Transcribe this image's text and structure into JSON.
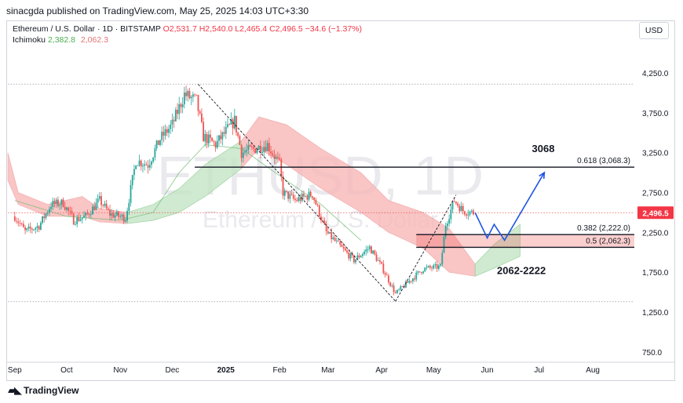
{
  "header": {
    "publisher": "sinacgda published on TradingView.com, May 25, 2025 14:03 UTC+3:30",
    "symbol": "Ethereum / U.S. Dollar · 1D · BITSTAMP",
    "ohlc": {
      "o": "O2,531.7",
      "h": "H2,540.0",
      "l": "L2,465.4",
      "c": "C2,496.5",
      "change": "−34.6 (−1.37%)"
    },
    "indicator": {
      "name": "Ichimoku",
      "v1": "2,382.8",
      "v2": "2,062.3"
    },
    "currency": "USD"
  },
  "watermark": {
    "ticker": "ETHUSD, 1D",
    "name": "Ethereum / U.S. Dollar"
  },
  "footer": {
    "brand": "TradingView"
  },
  "colors": {
    "up": "#26a69a",
    "down": "#ef5350",
    "cloud_bear": "#f8bcbc",
    "cloud_bull": "#c8e6c9",
    "projection": "#1e53e5",
    "zone": "#ef5350"
  },
  "chart_data": {
    "type": "candlestick",
    "y_scale": "linear",
    "ylim": [
      600,
      4500
    ],
    "yticks": [
      750,
      1250,
      1750,
      2250,
      2750,
      3250,
      3750,
      4250
    ],
    "ytick_labels": [
      "750.0",
      "1,250.0",
      "1,750.0",
      "2,250.0",
      "2,750.0",
      "3,250.0",
      "3,750.0",
      "4,250.0"
    ],
    "xlim": [
      "2024-08-28",
      "2025-08-25"
    ],
    "xticks": [
      {
        "date": "2024-09-01",
        "label": "Sep",
        "bold": false
      },
      {
        "date": "2024-10-01",
        "label": "Oct",
        "bold": false
      },
      {
        "date": "2024-11-01",
        "label": "Nov",
        "bold": false
      },
      {
        "date": "2024-12-01",
        "label": "Dec",
        "bold": false
      },
      {
        "date": "2025-01-01",
        "label": "2025",
        "bold": true
      },
      {
        "date": "2025-02-01",
        "label": "Feb",
        "bold": false
      },
      {
        "date": "2025-03-01",
        "label": "Mar",
        "bold": false
      },
      {
        "date": "2025-04-01",
        "label": "Apr",
        "bold": false
      },
      {
        "date": "2025-05-01",
        "label": "May",
        "bold": false
      },
      {
        "date": "2025-06-01",
        "label": "Jun",
        "bold": false
      },
      {
        "date": "2025-07-01",
        "label": "Jul",
        "bold": false
      },
      {
        "date": "2025-08-01",
        "label": "Aug",
        "bold": false
      }
    ],
    "price_path": [
      [
        "2024-09-01",
        2450
      ],
      [
        "2024-09-07",
        2260
      ],
      [
        "2024-09-15",
        2330
      ],
      [
        "2024-09-22",
        2600
      ],
      [
        "2024-09-29",
        2620
      ],
      [
        "2024-10-05",
        2400
      ],
      [
        "2024-10-12",
        2450
      ],
      [
        "2024-10-20",
        2650
      ],
      [
        "2024-10-26",
        2480
      ],
      [
        "2024-11-04",
        2430
      ],
      [
        "2024-11-10",
        3150
      ],
      [
        "2024-11-17",
        3100
      ],
      [
        "2024-11-24",
        3420
      ],
      [
        "2024-12-01",
        3600
      ],
      [
        "2024-12-08",
        3980
      ],
      [
        "2024-12-15",
        3900
      ],
      [
        "2024-12-19",
        3450
      ],
      [
        "2024-12-26",
        3350
      ],
      [
        "2025-01-06",
        3650
      ],
      [
        "2025-01-10",
        3250
      ],
      [
        "2025-01-18",
        3300
      ],
      [
        "2025-01-25",
        3350
      ],
      [
        "2025-02-01",
        3100
      ],
      [
        "2025-02-03",
        2750
      ],
      [
        "2025-02-10",
        2650
      ],
      [
        "2025-02-20",
        2730
      ],
      [
        "2025-02-28",
        2250
      ],
      [
        "2025-03-09",
        2050
      ],
      [
        "2025-03-16",
        1900
      ],
      [
        "2025-03-25",
        2060
      ],
      [
        "2025-04-01",
        1820
      ],
      [
        "2025-04-09",
        1480
      ],
      [
        "2025-04-15",
        1600
      ],
      [
        "2025-04-25",
        1790
      ],
      [
        "2025-05-05",
        1820
      ],
      [
        "2025-05-08",
        2350
      ],
      [
        "2025-05-13",
        2650
      ],
      [
        "2025-05-18",
        2520
      ],
      [
        "2025-05-24",
        2496.5
      ]
    ],
    "current_price": {
      "value": 2496.5,
      "label": "2,496.5"
    },
    "levels": [
      {
        "name": "level-3068",
        "value": 3068.3,
        "from": "2024-12-14",
        "label": "0.618 (3,068.3)",
        "annotation": "3068"
      },
      {
        "name": "level-2222",
        "value": 2222.0,
        "from": "2025-04-21",
        "label": "0.382 (2,222.0)"
      },
      {
        "name": "level-2062",
        "value": 2062.3,
        "from": "2025-04-21",
        "label": "0.5 (2,062.3)"
      }
    ],
    "zone": {
      "from": 2062.3,
      "to": 2222.0,
      "start": "2025-04-21",
      "label": "2062-2222"
    },
    "reference_lines": [
      {
        "value": 4110,
        "style": "dotted"
      },
      {
        "value": 1380,
        "style": "dotted"
      }
    ],
    "swing_lines": [
      [
        [
          "2024-12-16",
          4107
        ],
        [
          "2025-04-09",
          1385
        ]
      ],
      [
        [
          "2025-04-09",
          1385
        ],
        [
          "2025-05-14",
          2720
        ]
      ]
    ],
    "projection": [
      [
        "2025-05-25",
        2496
      ],
      [
        "2025-06-01",
        2180
      ],
      [
        "2025-06-05",
        2350
      ],
      [
        "2025-06-11",
        2150
      ],
      [
        "2025-07-04",
        3000
      ]
    ],
    "cloud_segments": [
      {
        "kind": "bear",
        "upper": [
          [
            "2024-08-28",
            3250
          ],
          [
            "2024-09-03",
            2750
          ],
          [
            "2024-09-20",
            2600
          ],
          [
            "2024-10-10",
            2700
          ],
          [
            "2024-10-20",
            2550
          ],
          [
            "2024-11-05",
            2500
          ]
        ],
        "lower": [
          [
            "2024-08-28",
            2900
          ],
          [
            "2024-09-03",
            2600
          ],
          [
            "2024-09-20",
            2450
          ],
          [
            "2024-10-10",
            2450
          ],
          [
            "2024-10-20",
            2380
          ],
          [
            "2024-11-05",
            2360
          ]
        ]
      },
      {
        "kind": "bull",
        "upper": [
          [
            "2024-11-05",
            2500
          ],
          [
            "2024-11-20",
            2600
          ],
          [
            "2024-12-05",
            2800
          ],
          [
            "2024-12-20",
            3100
          ],
          [
            "2025-01-10",
            3400
          ]
        ],
        "lower": [
          [
            "2024-11-05",
            2360
          ],
          [
            "2024-11-20",
            2400
          ],
          [
            "2024-12-05",
            2500
          ],
          [
            "2024-12-20",
            2700
          ],
          [
            "2025-01-10",
            3050
          ]
        ]
      },
      {
        "kind": "bear",
        "upper": [
          [
            "2025-01-10",
            3400
          ],
          [
            "2025-01-20",
            3700
          ],
          [
            "2025-02-05",
            3600
          ],
          [
            "2025-02-25",
            3300
          ],
          [
            "2025-03-20",
            3000
          ],
          [
            "2025-04-05",
            2650
          ],
          [
            "2025-04-25",
            2500
          ],
          [
            "2025-05-10",
            2300
          ],
          [
            "2025-05-25",
            1850
          ]
        ],
        "lower": [
          [
            "2025-01-10",
            3050
          ],
          [
            "2025-01-20",
            3300
          ],
          [
            "2025-02-05",
            3100
          ],
          [
            "2025-02-25",
            2800
          ],
          [
            "2025-03-20",
            2500
          ],
          [
            "2025-04-05",
            2250
          ],
          [
            "2025-04-25",
            2050
          ],
          [
            "2025-05-10",
            1750
          ],
          [
            "2025-05-25",
            1700
          ]
        ]
      },
      {
        "kind": "bull",
        "upper": [
          [
            "2025-05-25",
            1850
          ],
          [
            "2025-06-05",
            2100
          ],
          [
            "2025-06-20",
            2350
          ]
        ],
        "lower": [
          [
            "2025-05-25",
            1700
          ],
          [
            "2025-06-05",
            1800
          ],
          [
            "2025-06-20",
            1950
          ]
        ]
      }
    ],
    "lagging_span": [
      [
        "2024-09-01",
        2650
      ],
      [
        "2024-10-01",
        2450
      ],
      [
        "2024-11-01",
        2400
      ],
      [
        "2024-11-20",
        2500
      ],
      [
        "2024-12-05",
        3000
      ],
      [
        "2024-12-20",
        3350
      ],
      [
        "2025-01-10",
        3300
      ],
      [
        "2025-02-05",
        2900
      ],
      [
        "2025-02-25",
        2600
      ],
      [
        "2025-03-20",
        2150
      ]
    ]
  }
}
